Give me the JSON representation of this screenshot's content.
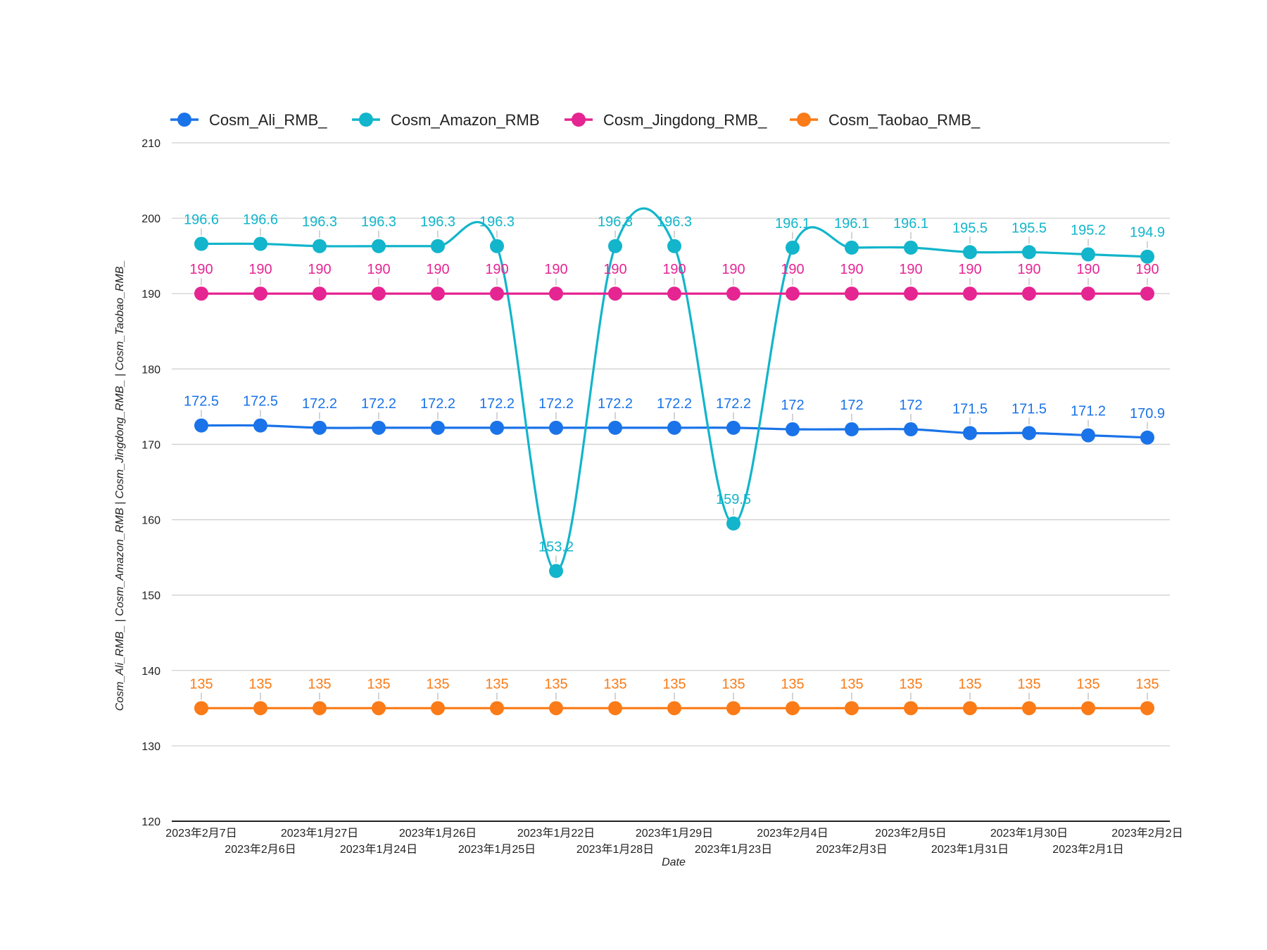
{
  "chart_data": {
    "type": "line",
    "xlabel": "Date",
    "ylabel": "Cosm_Ali_RMB_ | Cosm_Amazon_RMB | Cosm_Jingdong_RMB_ | Cosm_Taobao_RMB_",
    "ylim": [
      120,
      210
    ],
    "yticks": [
      120,
      130,
      140,
      150,
      160,
      170,
      180,
      190,
      200,
      210
    ],
    "grid": true,
    "legend_position": "top",
    "categories": [
      "2023年2月7日",
      "2023年2月6日",
      "2023年1月27日",
      "2023年1月24日",
      "2023年1月26日",
      "2023年1月25日",
      "2023年1月22日",
      "2023年1月28日",
      "2023年1月29日",
      "2023年1月23日",
      "2023年2月4日",
      "2023年2月3日",
      "2023年2月5日",
      "2023年1月31日",
      "2023年1月30日",
      "2023年2月1日",
      "2023年2月2日"
    ],
    "series": [
      {
        "name": "Cosm_Ali_RMB_",
        "color": "#1a73e8",
        "values": [
          172.5,
          172.5,
          172.2,
          172.2,
          172.2,
          172.2,
          172.2,
          172.2,
          172.2,
          172.2,
          172,
          172,
          172,
          171.5,
          171.5,
          171.2,
          170.9
        ]
      },
      {
        "name": "Cosm_Amazon_RMB",
        "color": "#12b5cb",
        "values": [
          196.6,
          196.6,
          196.3,
          196.3,
          196.3,
          196.3,
          153.2,
          196.3,
          196.3,
          159.5,
          196.1,
          196.1,
          196.1,
          195.5,
          195.5,
          195.2,
          194.9
        ]
      },
      {
        "name": "Cosm_Jingdong_RMB_",
        "color": "#e52592",
        "values": [
          190,
          190,
          190,
          190,
          190,
          190,
          190,
          190,
          190,
          190,
          190,
          190,
          190,
          190,
          190,
          190,
          190
        ]
      },
      {
        "name": "Cosm_Taobao_RMB_",
        "color": "#fa7b17",
        "values": [
          135,
          135,
          135,
          135,
          135,
          135,
          135,
          135,
          135,
          135,
          135,
          135,
          135,
          135,
          135,
          135,
          135
        ]
      }
    ]
  }
}
